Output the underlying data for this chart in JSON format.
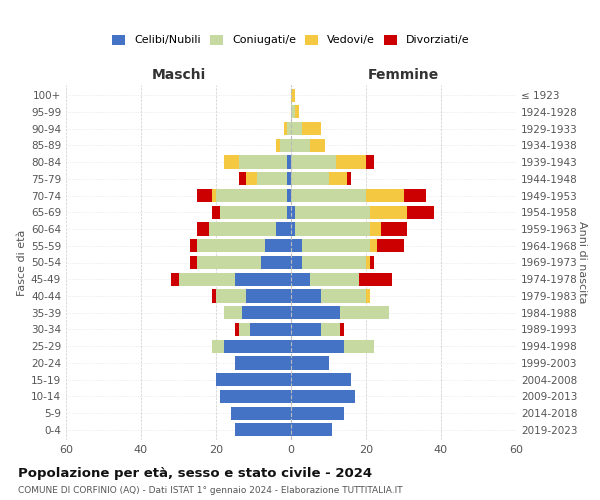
{
  "age_groups": [
    "0-4",
    "5-9",
    "10-14",
    "15-19",
    "20-24",
    "25-29",
    "30-34",
    "35-39",
    "40-44",
    "45-49",
    "50-54",
    "55-59",
    "60-64",
    "65-69",
    "70-74",
    "75-79",
    "80-84",
    "85-89",
    "90-94",
    "95-99",
    "100+"
  ],
  "birth_years": [
    "2019-2023",
    "2014-2018",
    "2009-2013",
    "2004-2008",
    "1999-2003",
    "1994-1998",
    "1989-1993",
    "1984-1988",
    "1979-1983",
    "1974-1978",
    "1969-1973",
    "1964-1968",
    "1959-1963",
    "1954-1958",
    "1949-1953",
    "1944-1948",
    "1939-1943",
    "1934-1938",
    "1929-1933",
    "1924-1928",
    "≤ 1923"
  ],
  "colors": {
    "celibi": "#4472c4",
    "coniugati": "#c5d9a0",
    "vedovi": "#f5c842",
    "divorziati": "#cc0000"
  },
  "maschi": {
    "celibi": [
      15,
      16,
      19,
      20,
      15,
      18,
      11,
      13,
      12,
      15,
      8,
      7,
      4,
      1,
      1,
      1,
      1,
      0,
      0,
      0,
      0
    ],
    "coniugati": [
      0,
      0,
      0,
      0,
      0,
      3,
      3,
      5,
      8,
      15,
      17,
      18,
      18,
      18,
      19,
      8,
      13,
      3,
      1,
      0,
      0
    ],
    "vedovi": [
      0,
      0,
      0,
      0,
      0,
      0,
      0,
      0,
      0,
      0,
      0,
      0,
      0,
      0,
      1,
      3,
      4,
      1,
      1,
      0,
      0
    ],
    "divorziati": [
      0,
      0,
      0,
      0,
      0,
      0,
      1,
      0,
      1,
      2,
      2,
      2,
      3,
      2,
      4,
      2,
      0,
      0,
      0,
      0,
      0
    ]
  },
  "femmine": {
    "celibi": [
      11,
      14,
      17,
      16,
      10,
      14,
      8,
      13,
      8,
      5,
      3,
      3,
      1,
      1,
      0,
      0,
      0,
      0,
      0,
      0,
      0
    ],
    "coniugati": [
      0,
      0,
      0,
      0,
      0,
      8,
      5,
      13,
      12,
      13,
      17,
      18,
      20,
      20,
      20,
      10,
      12,
      5,
      3,
      1,
      0
    ],
    "vedovi": [
      0,
      0,
      0,
      0,
      0,
      0,
      0,
      0,
      1,
      0,
      1,
      2,
      3,
      10,
      10,
      5,
      8,
      4,
      5,
      1,
      1
    ],
    "divorziati": [
      0,
      0,
      0,
      0,
      0,
      0,
      1,
      0,
      0,
      9,
      1,
      7,
      7,
      7,
      6,
      1,
      2,
      0,
      0,
      0,
      0
    ]
  },
  "xlim": 60,
  "title": "Popolazione per età, sesso e stato civile - 2024",
  "subtitle": "COMUNE DI CORFINIO (AQ) - Dati ISTAT 1° gennaio 2024 - Elaborazione TUTTITALIA.IT",
  "maschi_label": "Maschi",
  "femmine_label": "Femmine",
  "fasce_label": "Fasce di età",
  "anni_label": "Anni di nascita",
  "legend_labels": [
    "Celibi/Nubili",
    "Coniugati/e",
    "Vedovi/e",
    "Divorziati/e"
  ]
}
